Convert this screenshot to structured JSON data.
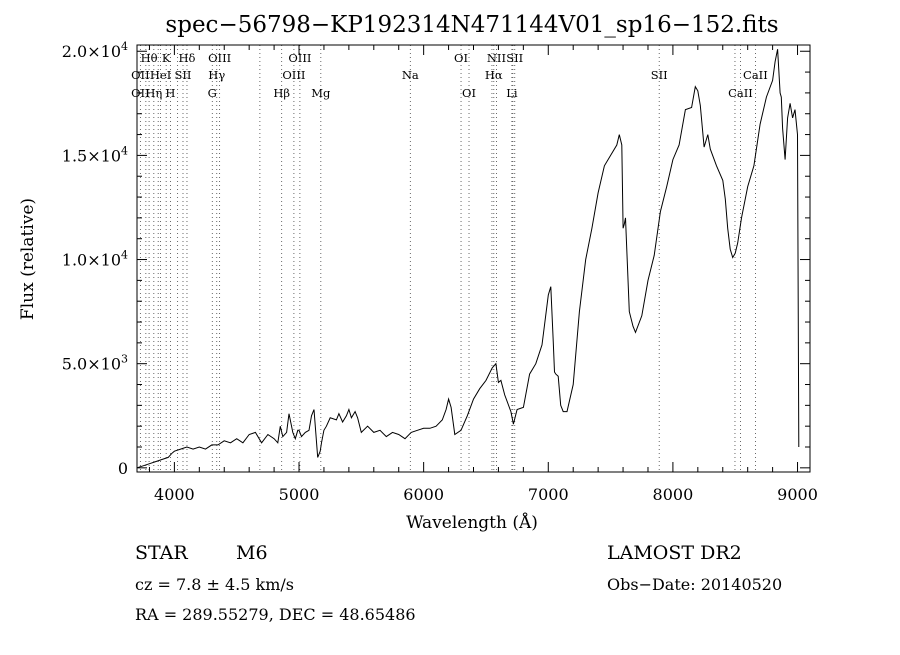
{
  "chart_data": {
    "type": "line",
    "title": "spec−56798−KP192314N471144V01_sp16−152.fits",
    "xlabel": "Wavelength (Å)",
    "ylabel": "Flux (relative)",
    "xlim": [
      3700,
      9100
    ],
    "ylim": [
      -200,
      20300
    ],
    "x_ticks": [
      {
        "value": 4000,
        "label": "4000"
      },
      {
        "value": 5000,
        "label": "5000"
      },
      {
        "value": 6000,
        "label": "6000"
      },
      {
        "value": 7000,
        "label": "7000"
      },
      {
        "value": 8000,
        "label": "8000"
      },
      {
        "value": 9000,
        "label": "9000"
      }
    ],
    "y_ticks": [
      {
        "value": 0,
        "mant": "0",
        "exp": ""
      },
      {
        "value": 5000,
        "mant": "5.0×10",
        "exp": "3"
      },
      {
        "value": 10000,
        "mant": "1.0×10",
        "exp": "4"
      },
      {
        "value": 15000,
        "mant": "1.5×10",
        "exp": "4"
      },
      {
        "value": 20000,
        "mant": "2.0×10",
        "exp": "4"
      }
    ],
    "grid": false,
    "series": [
      {
        "x": [
          3700,
          3750,
          3800,
          3850,
          3900,
          3950,
          3980,
          4000,
          4050,
          4100,
          4150,
          4200,
          4250,
          4300,
          4350,
          4400,
          4450,
          4500,
          4550,
          4600,
          4650,
          4700,
          4750,
          4800,
          4830,
          4850,
          4870,
          4900,
          4920,
          4950,
          4970,
          4990,
          5000,
          5020,
          5050,
          5080,
          5100,
          5120,
          5150,
          5170,
          5180,
          5200,
          5220,
          5250,
          5300,
          5320,
          5350,
          5380,
          5400,
          5420,
          5450,
          5470,
          5500,
          5550,
          5600,
          5650,
          5700,
          5750,
          5800,
          5850,
          5900,
          5950,
          6000,
          6050,
          6100,
          6150,
          6180,
          6200,
          6220,
          6250,
          6300,
          6350,
          6400,
          6450,
          6500,
          6550,
          6580,
          6600,
          6620,
          6650,
          6700,
          6720,
          6750,
          6800,
          6850,
          6900,
          6950,
          7000,
          7020,
          7040,
          7050,
          7060,
          7080,
          7100,
          7120,
          7150,
          7200,
          7250,
          7300,
          7350,
          7400,
          7450,
          7500,
          7550,
          7570,
          7590,
          7600,
          7610,
          7620,
          7650,
          7680,
          7700,
          7750,
          7800,
          7850,
          7900,
          7950,
          8000,
          8050,
          8100,
          8150,
          8180,
          8200,
          8220,
          8250,
          8280,
          8300,
          8350,
          8400,
          8420,
          8440,
          8460,
          8480,
          8500,
          8520,
          8550,
          8600,
          8650,
          8700,
          8750,
          8800,
          8820,
          8840,
          8860,
          8870,
          8880,
          8900,
          8920,
          8940,
          8960,
          8980,
          9000,
          9010
        ],
        "y": [
          0,
          100,
          200,
          300,
          400,
          500,
          700,
          800,
          900,
          1000,
          900,
          1000,
          900,
          1100,
          1100,
          1300,
          1200,
          1400,
          1200,
          1600,
          1700,
          1200,
          1600,
          1400,
          1200,
          2000,
          1500,
          1700,
          2600,
          1700,
          1400,
          1800,
          1800,
          1500,
          1700,
          1800,
          2500,
          2800,
          500,
          800,
          1200,
          1800,
          2000,
          2400,
          2300,
          2600,
          2200,
          2500,
          2800,
          2400,
          2700,
          2400,
          1700,
          2000,
          1700,
          1800,
          1500,
          1700,
          1600,
          1400,
          1700,
          1800,
          1900,
          1900,
          2000,
          2300,
          2800,
          3300,
          2900,
          1600,
          1800,
          2500,
          3300,
          3800,
          4200,
          4800,
          5000,
          4100,
          4200,
          3500,
          2700,
          2100,
          2800,
          2900,
          4500,
          5000,
          5900,
          8300,
          8700,
          6000,
          4600,
          4500,
          4400,
          3000,
          2700,
          2700,
          4000,
          7500,
          10000,
          11500,
          13200,
          14500,
          15000,
          15500,
          16000,
          15500,
          11500,
          11700,
          12000,
          7500,
          6800,
          6500,
          7300,
          9000,
          10200,
          12300,
          13500,
          14800,
          15500,
          17200,
          17300,
          18300,
          18100,
          17400,
          15400,
          16000,
          15300,
          14500,
          13800,
          12900,
          11500,
          10500,
          10100,
          10300,
          10800,
          12000,
          13500,
          14500,
          16500,
          17800,
          18600,
          19500,
          20100,
          18000,
          17800,
          16300,
          14800,
          16800,
          17500,
          16800,
          17200,
          16000,
          1000
        ]
      }
    ],
    "spectral_lines": [
      {
        "label": "Hθ",
        "x": 3797,
        "row": 0
      },
      {
        "label": "K",
        "x": 3934,
        "row": 0
      },
      {
        "label": "Hδ",
        "x": 4101,
        "row": 0
      },
      {
        "label": "OIII",
        "x": 4363,
        "row": 0
      },
      {
        "label": "OIII",
        "x": 5007,
        "row": 0
      },
      {
        "label": "OI",
        "x": 6300,
        "row": 0
      },
      {
        "label": "NII",
        "x": 6584,
        "row": 0
      },
      {
        "label": "SII",
        "x": 6731,
        "row": 0
      },
      {
        "label": "OII",
        "x": 3727,
        "row": 1
      },
      {
        "label": "HeI",
        "x": 3889,
        "row": 1
      },
      {
        "label": "SII",
        "x": 4069,
        "row": 1
      },
      {
        "label": "Hγ",
        "x": 4340,
        "row": 1
      },
      {
        "label": "OIII",
        "x": 4959,
        "row": 1
      },
      {
        "label": "Na",
        "x": 5893,
        "row": 1
      },
      {
        "label": "Hα",
        "x": 6563,
        "row": 1
      },
      {
        "label": "SII",
        "x": 7890,
        "row": 1
      },
      {
        "label": "CaII",
        "x": 8662,
        "row": 1
      },
      {
        "label": "OII",
        "x": 3727,
        "row": 2
      },
      {
        "label": "Hη",
        "x": 3835,
        "row": 2
      },
      {
        "label": "H",
        "x": 3968,
        "row": 2
      },
      {
        "label": "G",
        "x": 4304,
        "row": 2
      },
      {
        "label": "Hβ",
        "x": 4861,
        "row": 2
      },
      {
        "label": "Mg",
        "x": 5175,
        "row": 2
      },
      {
        "label": "OI",
        "x": 6364,
        "row": 2
      },
      {
        "label": "Li",
        "x": 6708,
        "row": 2
      },
      {
        "label": "CaII",
        "x": 8542,
        "row": 2
      }
    ],
    "extra_guides": [
      3771,
      3870,
      4026,
      4686,
      6548,
      6716,
      8498
    ]
  },
  "info": {
    "class_label": "STAR",
    "subclass": "M6",
    "survey": "LAMOST DR2",
    "cz": "cz = 7.8 ± 4.5 km/s",
    "obs_date": "Obs−Date: 20140520",
    "coords": "RA = 289.55279, DEC =  48.65486"
  }
}
